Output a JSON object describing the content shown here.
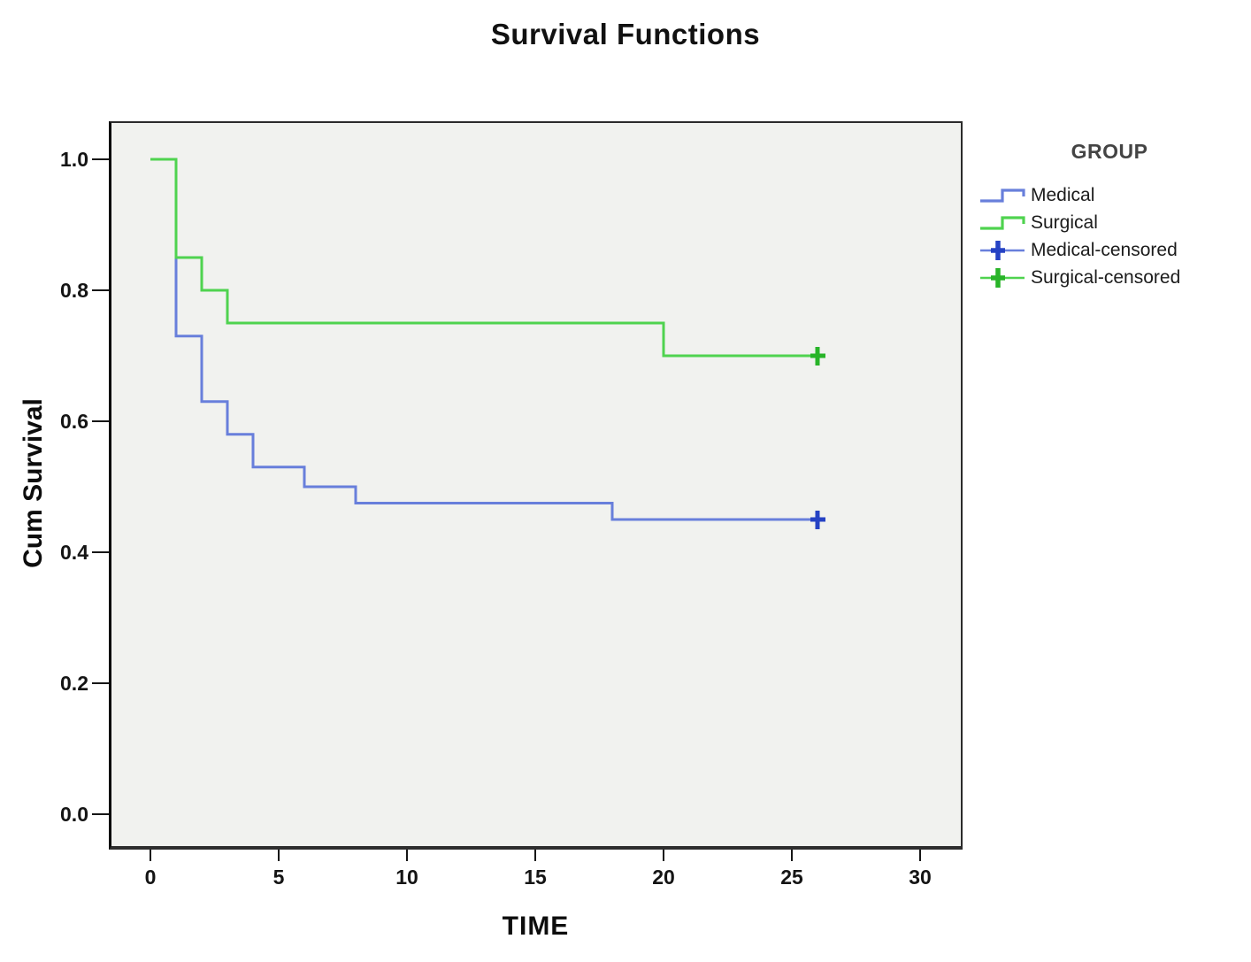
{
  "chart_data": {
    "type": "line",
    "subtype": "kaplan_meier_step",
    "title": "Survival Functions",
    "xlabel": "TIME",
    "ylabel": "Cum Survival",
    "x_ticks": [
      "0",
      "5",
      "10",
      "15",
      "20",
      "25",
      "30"
    ],
    "y_ticks": [
      "0.0",
      "0.2",
      "0.4",
      "0.6",
      "0.8",
      "1.0"
    ],
    "xlim": [
      -1.6,
      31.7
    ],
    "ylim": [
      -0.05,
      1.06
    ],
    "grid": false,
    "legend_position": "right",
    "legend_title": "GROUP",
    "series": [
      {
        "name": "Medical",
        "color": "#687fdb",
        "censor_color": "#2542c4",
        "steps": [
          [
            0,
            1.0
          ],
          [
            1,
            0.73
          ],
          [
            2,
            0.63
          ],
          [
            3,
            0.58
          ],
          [
            4,
            0.53
          ],
          [
            6,
            0.5
          ],
          [
            8,
            0.475
          ],
          [
            18,
            0.45
          ]
        ],
        "line_end_time": 26.3,
        "censored_points": [
          [
            26,
            0.45
          ]
        ]
      },
      {
        "name": "Surgical",
        "color": "#4fd34f",
        "censor_color": "#28b428",
        "steps": [
          [
            0,
            1.0
          ],
          [
            1,
            0.85
          ],
          [
            2,
            0.8
          ],
          [
            3,
            0.75
          ],
          [
            20,
            0.7
          ]
        ],
        "line_end_time": 26.3,
        "censored_points": [
          [
            26,
            0.7
          ]
        ]
      }
    ],
    "legend": [
      {
        "label": "Medical",
        "symbol": "step-line",
        "color": "#687fdb"
      },
      {
        "label": "Surgical",
        "symbol": "step-line",
        "color": "#4fd34f"
      },
      {
        "label": "Medical-censored",
        "symbol": "plus-line",
        "color": "#687fdb",
        "plus_color": "#2542c4"
      },
      {
        "label": "Surgical-censored",
        "symbol": "plus-line",
        "color": "#4fd34f",
        "plus_color": "#28b428"
      }
    ]
  },
  "colors": {
    "plot_background": "#f1f2ef",
    "axis_line": "#161616",
    "frame_line": "#2b2b2b",
    "text": "#141414"
  }
}
